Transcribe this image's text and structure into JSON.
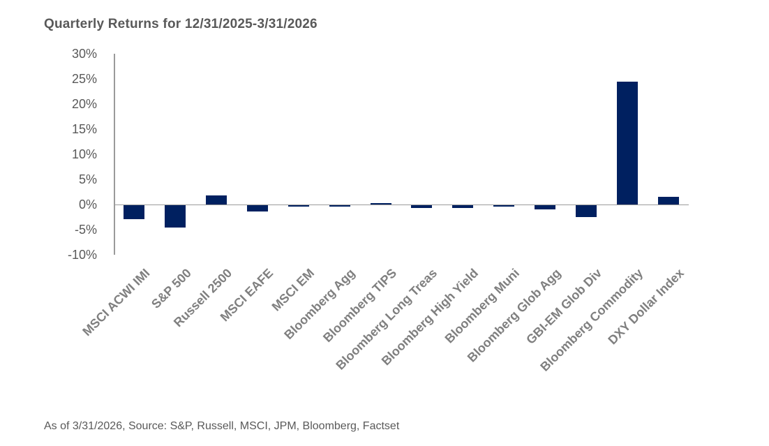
{
  "title": "Quarterly Returns for 12/31/2025-3/31/2026",
  "footer_note": "As of 3/31/2026, Source: S&P, Russell, MSCI, JPM, Bloomberg, Factset",
  "colors": {
    "bar": "#002060",
    "axis_line": "#9a9a9a",
    "title_text": "#595959",
    "tick_text": "#595959",
    "category_text": "#7f7f7f",
    "background": "#ffffff"
  },
  "chart_data": {
    "type": "bar",
    "title": "Quarterly Returns for 12/31/2025-3/31/2026",
    "categories": [
      "MSCI ACWI IMI",
      "S&P 500",
      "Russell 2500",
      "MSCI EAFE",
      "MSCI EM",
      "Bloomberg Agg",
      "Bloomberg TIPS",
      "Bloomberg Long Treas",
      "Bloomberg High Yield",
      "Bloomberg Muni",
      "Bloomberg Glob Agg",
      "GBI-EM Glob Div",
      "Bloomberg Commodity",
      "DXY Dollar Index"
    ],
    "values": [
      -2.8,
      -4.4,
      1.8,
      -1.3,
      -0.3,
      -0.3,
      0.3,
      -0.6,
      -0.6,
      -0.3,
      -0.9,
      -2.4,
      24.5,
      1.5
    ],
    "unit": "%",
    "xlabel": "",
    "ylabel": "",
    "ylim": [
      -10,
      30
    ],
    "ytick_step": 5,
    "ytick_labels": [
      "30%",
      "25%",
      "20%",
      "15%",
      "10%",
      "5%",
      "0%",
      "-5%",
      "-10%"
    ],
    "grid": false,
    "legend": null
  }
}
